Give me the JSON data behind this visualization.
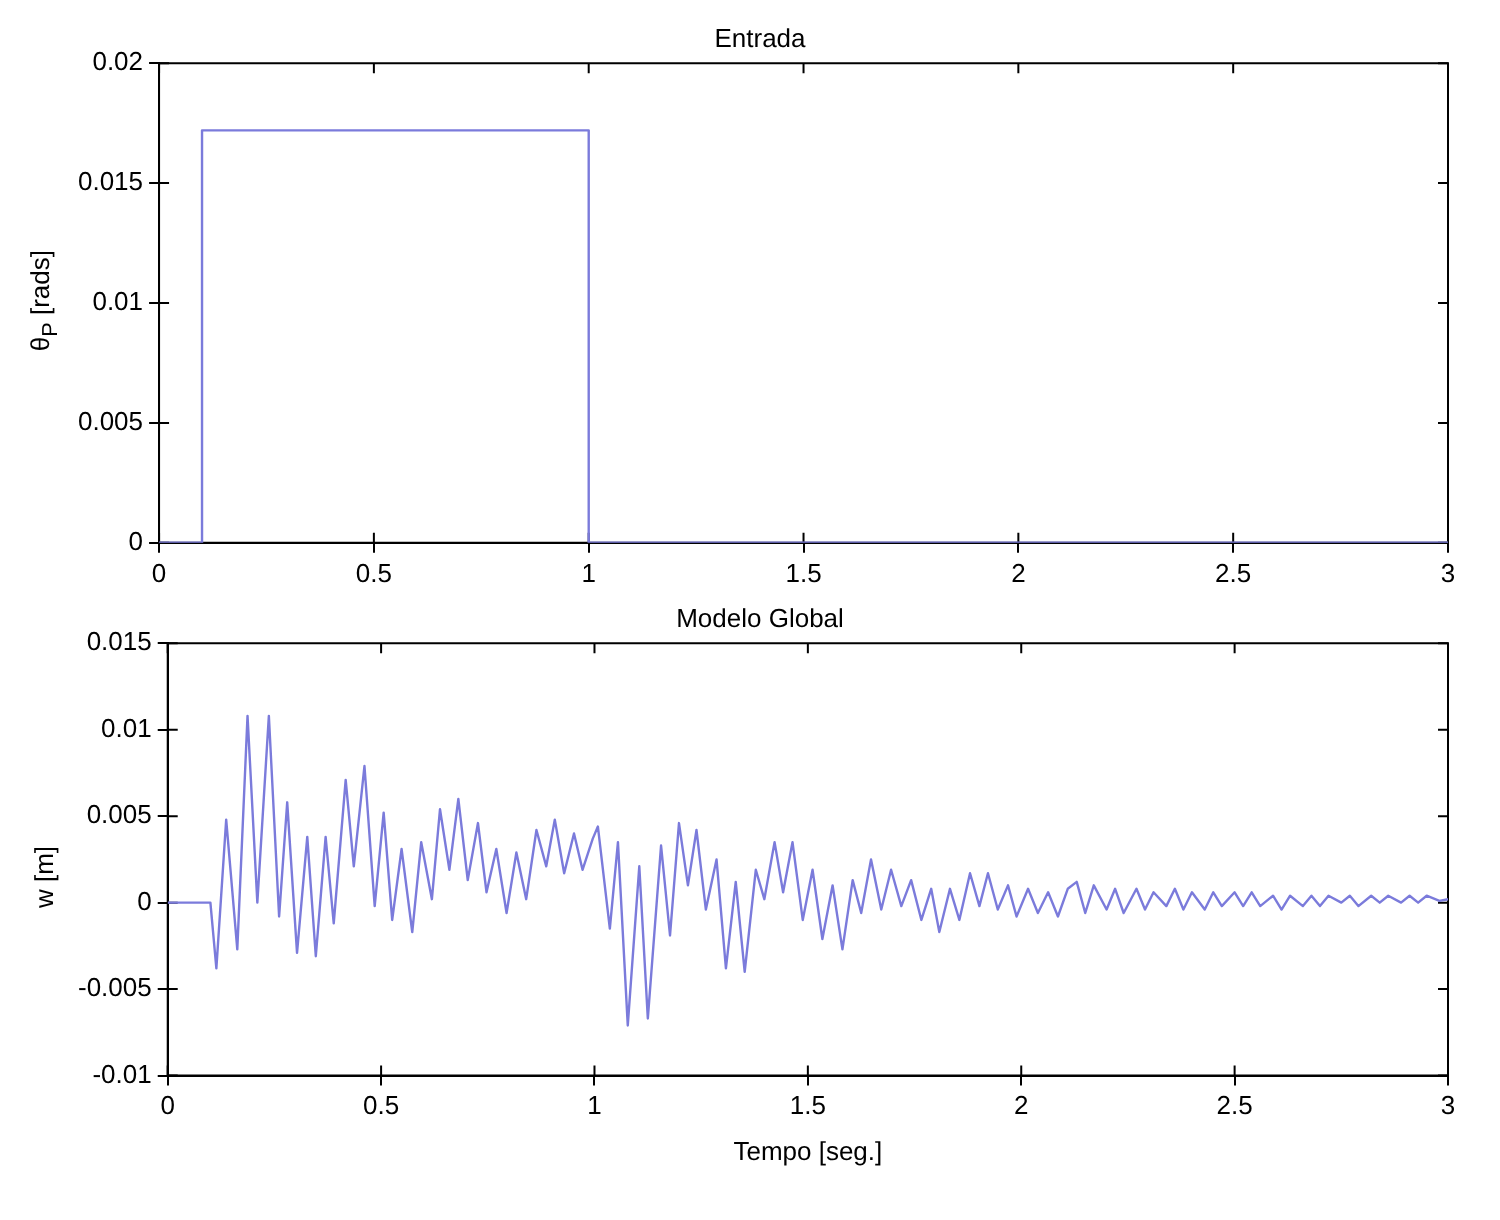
{
  "chart_data": [
    {
      "type": "line",
      "title": "Entrada",
      "ylabel": "θ$_{P}$ [rads]",
      "xlim": [
        0,
        3
      ],
      "xticks": [
        0,
        0.5,
        1,
        1.5,
        2,
        2.5,
        3
      ],
      "ylim": [
        0,
        0.02
      ],
      "yticks": [
        0,
        0.005,
        0.01,
        0.015,
        0.02
      ],
      "grid": false,
      "legend": false,
      "series": [
        {
          "color": "#7b7bdb",
          "x": [
            0,
            0.1,
            0.1,
            1,
            1,
            3
          ],
          "values": [
            0,
            0,
            0.0172,
            0.0172,
            0,
            0
          ]
        }
      ]
    },
    {
      "type": "line",
      "title": "Modelo Global",
      "xlabel": "Tempo [seg.]",
      "ylabel": "w [m]",
      "xlim": [
        0,
        3
      ],
      "xticks": [
        0,
        0.5,
        1,
        1.5,
        2,
        2.5,
        3
      ],
      "ylim": [
        -0.01,
        0.015
      ],
      "yticks": [
        -0.01,
        -0.005,
        0,
        0.005,
        0.01,
        0.015
      ],
      "grid": false,
      "legend": false,
      "series": [
        {
          "color": "#7b7bdb",
          "x": [
            0,
            0.1,
            0.114,
            0.137,
            0.163,
            0.187,
            0.21,
            0.237,
            0.261,
            0.28,
            0.303,
            0.327,
            0.347,
            0.37,
            0.389,
            0.417,
            0.436,
            0.461,
            0.485,
            0.506,
            0.526,
            0.548,
            0.573,
            0.594,
            0.619,
            0.638,
            0.66,
            0.681,
            0.703,
            0.727,
            0.747,
            0.77,
            0.794,
            0.817,
            0.84,
            0.864,
            0.887,
            0.907,
            0.929,
            0.952,
            0.972,
            0.996,
            1.008,
            1.036,
            1.055,
            1.078,
            1.105,
            1.125,
            1.156,
            1.177,
            1.198,
            1.219,
            1.239,
            1.261,
            1.286,
            1.308,
            1.331,
            1.352,
            1.378,
            1.398,
            1.422,
            1.442,
            1.464,
            1.488,
            1.511,
            1.534,
            1.558,
            1.581,
            1.605,
            1.625,
            1.648,
            1.672,
            1.695,
            1.719,
            1.742,
            1.766,
            1.789,
            1.808,
            1.833,
            1.855,
            1.88,
            1.902,
            1.922,
            1.945,
            1.969,
            1.989,
            2.016,
            2.039,
            2.063,
            2.086,
            2.109,
            2.13,
            2.15,
            2.17,
            2.2,
            2.22,
            2.24,
            2.27,
            2.29,
            2.31,
            2.34,
            2.36,
            2.38,
            2.4,
            2.43,
            2.45,
            2.47,
            2.5,
            2.52,
            2.54,
            2.56,
            2.59,
            2.61,
            2.63,
            2.66,
            2.68,
            2.7,
            2.72,
            2.75,
            2.77,
            2.79,
            2.82,
            2.84,
            2.86,
            2.89,
            2.91,
            2.93,
            2.95,
            2.98,
            3
          ],
          "values": [
            0,
            0,
            -0.0038,
            0.0048,
            -0.0027,
            0.0108,
            0,
            0.0108,
            -0.0008,
            0.0058,
            -0.0029,
            0.0038,
            -0.0031,
            0.0038,
            -0.0012,
            0.0071,
            0.0021,
            0.0079,
            -0.0002,
            0.0052,
            -0.001,
            0.0031,
            -0.0017,
            0.0035,
            0.0002,
            0.0054,
            0.0019,
            0.006,
            0.0013,
            0.0046,
            0.0006,
            0.0031,
            -0.0006,
            0.0029,
            0.0002,
            0.0042,
            0.0021,
            0.0048,
            0.0017,
            0.004,
            0.0019,
            0.0037,
            0.0044,
            -0.0015,
            0.0035,
            -0.0071,
            0.0021,
            -0.0067,
            0.0033,
            -0.0019,
            0.0046,
            0.001,
            0.0042,
            -0.0004,
            0.0025,
            -0.0038,
            0.0012,
            -0.004,
            0.0019,
            0.0002,
            0.0035,
            0.0006,
            0.0035,
            -0.001,
            0.0019,
            -0.0021,
            0.001,
            -0.0027,
            0.0013,
            -0.0006,
            0.0025,
            -0.0004,
            0.0019,
            -0.0002,
            0.0013,
            -0.001,
            0.0008,
            -0.0017,
            0.0008,
            -0.001,
            0.0017,
            -0.0002,
            0.0017,
            -0.0004,
            0.001,
            -0.0008,
            0.0008,
            -0.0006,
            0.0006,
            -0.0008,
            0.0008,
            0.0012,
            -0.0006,
            0.001,
            -0.0004,
            0.0008,
            -0.0006,
            0.0008,
            -0.0004,
            0.0006,
            -0.0002,
            0.0008,
            -0.0004,
            0.0006,
            -0.0004,
            0.0006,
            -0.0002,
            0.0006,
            -0.0002,
            0.0006,
            -0.0002,
            0.0004,
            -0.0004,
            0.0004,
            -0.0002,
            0.0004,
            -0.0002,
            0.0004,
            0,
            0.0004,
            -0.0002,
            0.0004,
            0,
            0.0004,
            0,
            0.0004,
            0,
            0.0004,
            0.0001,
            0.0002
          ]
        }
      ]
    }
  ]
}
